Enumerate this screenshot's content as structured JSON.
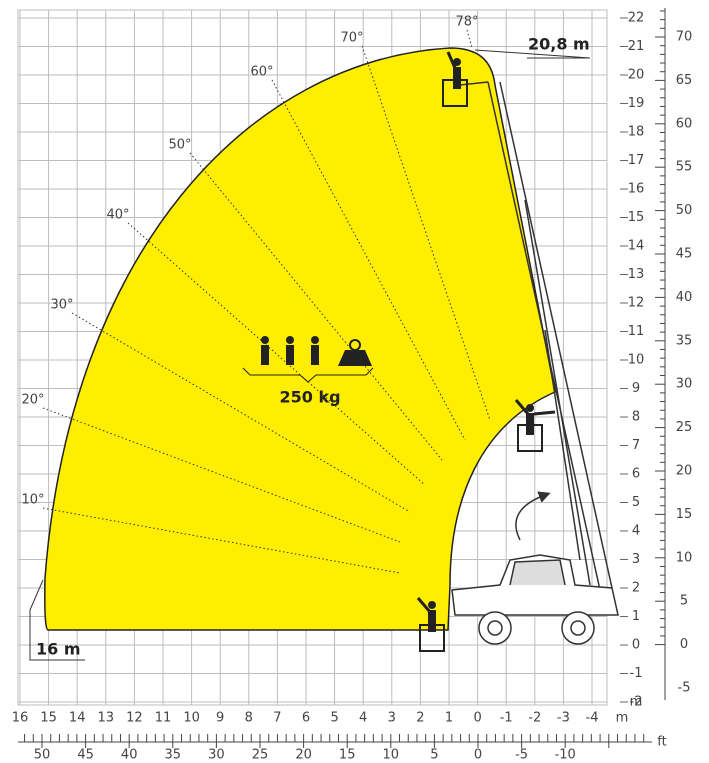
{
  "max_height_label": "20,8 m",
  "max_outreach_label": "16 m",
  "load_label": "250 kg",
  "angles": [
    "10°",
    "20°",
    "30°",
    "40°",
    "50°",
    "60°",
    "70°",
    "78°"
  ],
  "x_axis_m": {
    "labels": [
      "16",
      "15",
      "14",
      "13",
      "12",
      "11",
      "10",
      "9",
      "8",
      "7",
      "6",
      "5",
      "4",
      "3",
      "2",
      "1",
      "0",
      "-1",
      "-2",
      "-3",
      "-4"
    ],
    "unit": "m"
  },
  "y_axis_m": {
    "labels": [
      "22",
      "21",
      "20",
      "19",
      "18",
      "17",
      "16",
      "15",
      "14",
      "13",
      "12",
      "11",
      "10",
      "9",
      "8",
      "7",
      "6",
      "5",
      "4",
      "3",
      "2",
      "1",
      "0",
      "-1",
      "-2"
    ],
    "unit": "m"
  },
  "y_axis_ft": {
    "labels": [
      "70",
      "65",
      "60",
      "55",
      "50",
      "45",
      "40",
      "35",
      "30",
      "25",
      "20",
      "15",
      "10",
      "5",
      "0",
      "-5"
    ]
  },
  "x_axis_ft": {
    "labels": [
      "50",
      "45",
      "40",
      "35",
      "30",
      "25",
      "20",
      "15",
      "10",
      "5",
      "0",
      "-5",
      "-10"
    ],
    "unit": "ft"
  }
}
